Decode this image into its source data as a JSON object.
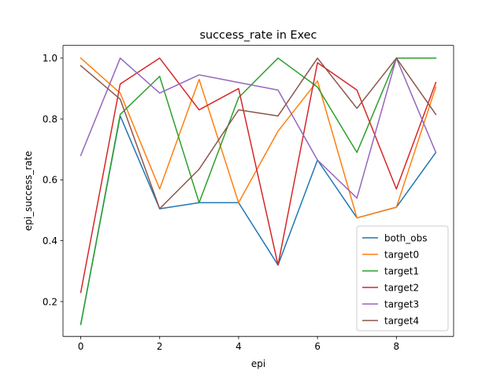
{
  "chart_data": {
    "type": "line",
    "title": "success_rate in Exec",
    "xlabel": "epi",
    "ylabel": "epi_success_rate",
    "xlim": [
      -0.45,
      9.45
    ],
    "ylim": [
      0.0855,
      1.0419
    ],
    "x_ticks": [
      0,
      2,
      4,
      6,
      8
    ],
    "x_tick_labels": [
      "0",
      "2",
      "4",
      "6",
      "8"
    ],
    "y_ticks": [
      0.2,
      0.4,
      0.6,
      0.8,
      1.0
    ],
    "y_tick_labels": [
      "0.2",
      "0.4",
      "0.6",
      "0.8",
      "1.0"
    ],
    "grid": false,
    "legend_position": "lower-right",
    "x": [
      0,
      1,
      2,
      3,
      4,
      5,
      6,
      7,
      8,
      9
    ],
    "series": [
      {
        "name": "both_obs",
        "color": "#1f77b4",
        "values": [
          0.125,
          0.81,
          0.505,
          0.525,
          0.525,
          0.32,
          0.665,
          0.475,
          0.51,
          0.69
        ]
      },
      {
        "name": "target0",
        "color": "#ff7f0e",
        "values": [
          1.0,
          0.885,
          0.57,
          0.93,
          0.525,
          0.76,
          0.925,
          0.475,
          0.51,
          0.905
        ]
      },
      {
        "name": "target1",
        "color": "#2ca02c",
        "values": [
          0.125,
          0.815,
          0.94,
          0.525,
          0.87,
          1.0,
          0.905,
          0.69,
          1.0,
          1.0
        ]
      },
      {
        "name": "target2",
        "color": "#d62728",
        "values": [
          0.23,
          0.915,
          1.0,
          0.83,
          0.9,
          0.32,
          0.985,
          0.895,
          0.57,
          0.92
        ]
      },
      {
        "name": "target3",
        "color": "#9467bd",
        "values": [
          0.68,
          1.0,
          0.885,
          0.945,
          0.92,
          0.895,
          0.665,
          0.54,
          1.0,
          0.69
        ]
      },
      {
        "name": "target4",
        "color": "#8c564b",
        "values": [
          0.975,
          0.865,
          0.505,
          0.635,
          0.83,
          0.81,
          1.0,
          0.835,
          1.0,
          0.815
        ]
      }
    ]
  }
}
